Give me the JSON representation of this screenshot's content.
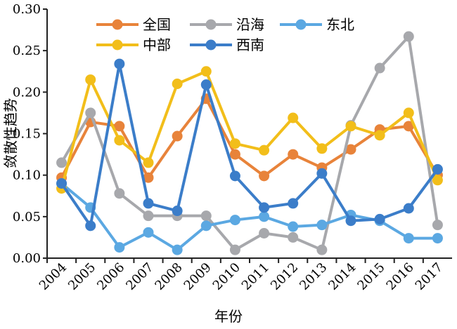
{
  "chart_data": {
    "type": "line",
    "xlabel": "年份",
    "ylabel": "敛散性趋势",
    "ylim": [
      0,
      0.3
    ],
    "yticks": [
      "0.00",
      "0.05",
      "0.10",
      "0.15",
      "0.20",
      "0.25",
      "0.30"
    ],
    "x": [
      "2004",
      "2005",
      "2006",
      "2007",
      "2008",
      "2009",
      "2010",
      "2011",
      "2012",
      "2013",
      "2014",
      "2015",
      "2016",
      "2017"
    ],
    "legend": "top",
    "series": [
      {
        "name": "全国",
        "color": "#E8833A",
        "values": [
          0.097,
          0.164,
          0.159,
          0.097,
          0.147,
          0.192,
          0.125,
          0.099,
          0.125,
          0.109,
          0.131,
          0.155,
          0.159,
          0.1
        ]
      },
      {
        "name": "沿海",
        "color": "#A7A8AC",
        "values": [
          0.115,
          0.175,
          0.078,
          0.051,
          0.051,
          0.051,
          0.01,
          0.03,
          0.025,
          0.01,
          0.16,
          0.229,
          0.267,
          0.04
        ]
      },
      {
        "name": "东北",
        "color": "#5BA8E2",
        "values": [
          0.09,
          0.061,
          0.013,
          0.031,
          0.01,
          0.039,
          0.046,
          0.05,
          0.038,
          0.04,
          0.052,
          0.045,
          0.024,
          0.024
        ]
      },
      {
        "name": "中部",
        "color": "#F2BE1A",
        "values": [
          0.084,
          0.215,
          0.142,
          0.115,
          0.21,
          0.225,
          0.138,
          0.13,
          0.169,
          0.132,
          0.159,
          0.148,
          0.175,
          0.094
        ]
      },
      {
        "name": "西南",
        "color": "#3B7DC9",
        "values": [
          0.09,
          0.039,
          0.234,
          0.066,
          0.057,
          0.209,
          0.099,
          0.061,
          0.066,
          0.102,
          0.045,
          0.047,
          0.06,
          0.107
        ]
      }
    ]
  }
}
